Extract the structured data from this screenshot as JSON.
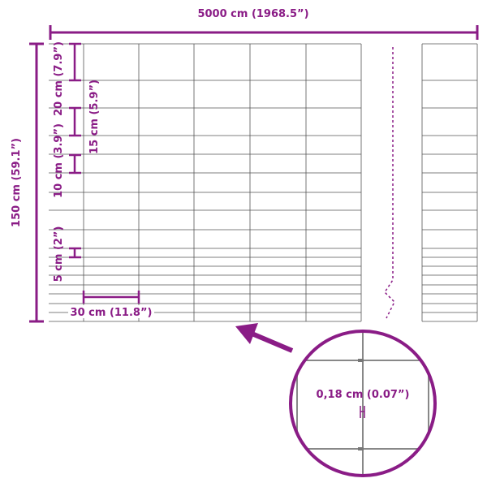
{
  "accent_color": "#8a1c86",
  "wire_color": "#555555",
  "dimensions": {
    "length": "5000 cm (1968.5”)",
    "height": "150 cm (59.1”)",
    "spacing_20": "20 cm (7.9”)",
    "spacing_15": "15 cm (5.9”)",
    "spacing_10": "10 cm (3.9”)",
    "spacing_5": "5 cm (2”)",
    "vertical_spacing": "30 cm (11.8”)",
    "wire_diameter": "0,18 cm (0.07”)"
  }
}
